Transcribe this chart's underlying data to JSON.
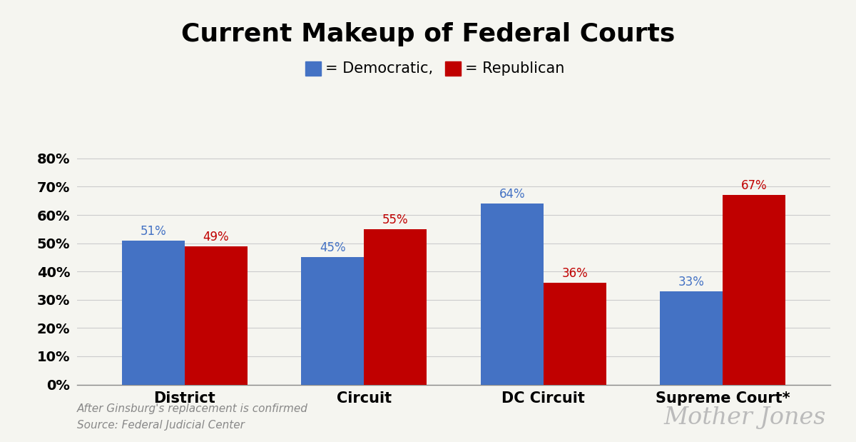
{
  "title": "Current Makeup of Federal Courts",
  "title_fontsize": 26,
  "title_fontweight": "bold",
  "categories": [
    "District",
    "Circuit",
    "DC Circuit",
    "Supreme Court*"
  ],
  "democratic_values": [
    51,
    45,
    64,
    33
  ],
  "republican_values": [
    49,
    55,
    36,
    67
  ],
  "democratic_color": "#4472C4",
  "republican_color": "#C00000",
  "background_color": "#F5F5F0",
  "bar_width": 0.35,
  "yticks": [
    0,
    10,
    20,
    30,
    40,
    50,
    60,
    70,
    80
  ],
  "ytick_labels": [
    "0%",
    "10%",
    "20%",
    "30%",
    "40%",
    "50%",
    "60%",
    "70%",
    "80%"
  ],
  "ylim": [
    0,
    86
  ],
  "footnote_line1": "After Ginsburg's replacement is confirmed",
  "footnote_line2": "Source: Federal Judicial Center",
  "watermark": "Mother Jones",
  "legend_label_dem": "= Democratic,",
  "legend_label_rep": "= Republican"
}
